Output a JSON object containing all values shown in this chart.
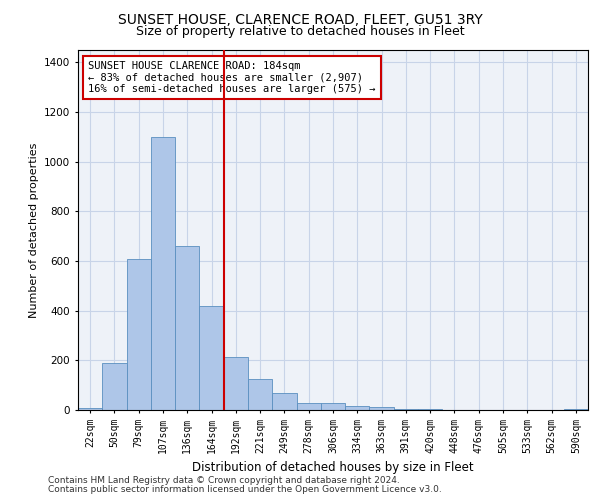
{
  "title1": "SUNSET HOUSE, CLARENCE ROAD, FLEET, GU51 3RY",
  "title2": "Size of property relative to detached houses in Fleet",
  "xlabel": "Distribution of detached houses by size in Fleet",
  "ylabel": "Number of detached properties",
  "categories": [
    "22sqm",
    "50sqm",
    "79sqm",
    "107sqm",
    "136sqm",
    "164sqm",
    "192sqm",
    "221sqm",
    "249sqm",
    "278sqm",
    "306sqm",
    "334sqm",
    "363sqm",
    "391sqm",
    "420sqm",
    "448sqm",
    "476sqm",
    "505sqm",
    "533sqm",
    "562sqm",
    "590sqm"
  ],
  "values": [
    10,
    190,
    610,
    1100,
    660,
    420,
    215,
    125,
    70,
    30,
    28,
    18,
    12,
    5,
    3,
    1,
    0,
    0,
    0,
    0,
    5
  ],
  "bar_color": "#aec6e8",
  "bar_edge_color": "#5a8fc0",
  "vline_x_index": 6,
  "vline_color": "#cc0000",
  "annotation_text": "SUNSET HOUSE CLARENCE ROAD: 184sqm\n← 83% of detached houses are smaller (2,907)\n16% of semi-detached houses are larger (575) →",
  "annotation_box_color": "#cc0000",
  "bg_color": "#eef2f8",
  "grid_color": "#c8d4e8",
  "ylim": [
    0,
    1450
  ],
  "yticks": [
    0,
    200,
    400,
    600,
    800,
    1000,
    1200,
    1400
  ],
  "footer1": "Contains HM Land Registry data © Crown copyright and database right 2024.",
  "footer2": "Contains public sector information licensed under the Open Government Licence v3.0.",
  "title1_fontsize": 10,
  "title2_fontsize": 9,
  "xlabel_fontsize": 8.5,
  "ylabel_fontsize": 8,
  "annotation_fontsize": 7.5,
  "footer_fontsize": 6.5
}
